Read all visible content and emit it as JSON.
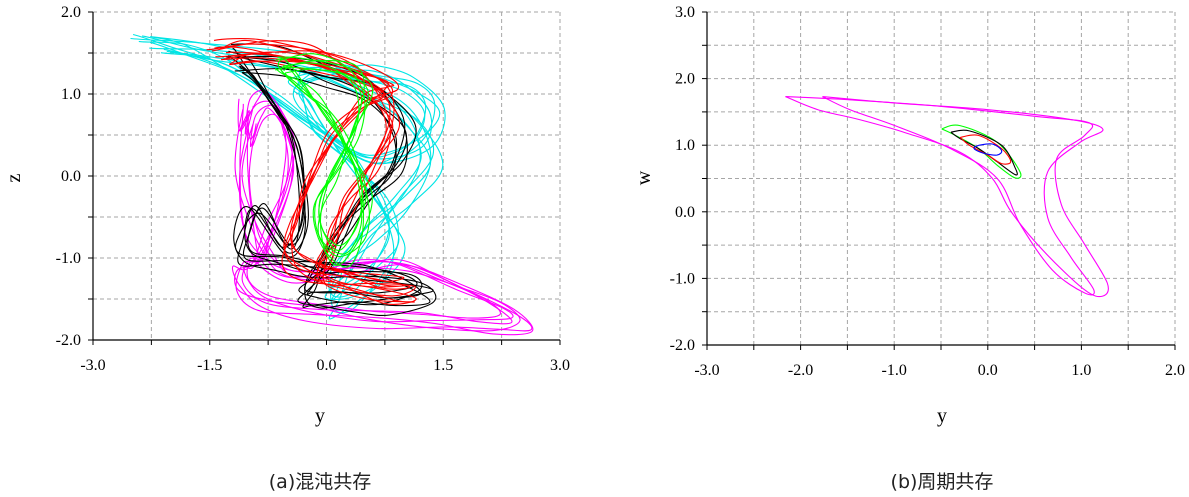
{
  "figures": [
    {
      "caption": "(a)混沌共存"
    },
    {
      "caption": "(b)周期共存"
    }
  ],
  "chart_data": [
    {
      "type": "line",
      "title": "",
      "xlabel": "y",
      "ylabel": "z",
      "xlim": [
        -3.0,
        3.0
      ],
      "ylim": [
        -2.0,
        2.0
      ],
      "xticks": [
        "-3.0",
        "-1.5",
        "0.0",
        "1.5",
        "3.0"
      ],
      "yticks": [
        "2.0",
        "1.0",
        "0.0",
        "-1.0",
        "-2.0"
      ],
      "grid": true,
      "series": [
        {
          "color": "#00e5e5",
          "kind": "chaotic",
          "x": [
            -2.3,
            -1.5,
            -0.3,
            0.5,
            1.1,
            1.35,
            1.0,
            0.6,
            0.3,
            0.1,
            0.05,
            0.3,
            0.7,
            0.9,
            0.7,
            0.3,
            -0.1,
            -0.3,
            -0.4,
            -0.2,
            0.2,
            0.6,
            1.1,
            1.4,
            1.2,
            0.6,
            0.0,
            -0.6,
            -1.2,
            -1.8,
            -2.3
          ],
          "y": [
            1.65,
            1.55,
            1.35,
            1.05,
            0.7,
            0.2,
            -0.3,
            -0.7,
            -1.05,
            -1.35,
            -1.55,
            -1.5,
            -1.2,
            -0.8,
            -0.3,
            0.2,
            0.6,
            0.9,
            1.1,
            1.25,
            1.3,
            1.25,
            1.1,
            0.8,
            0.4,
            0.2,
            0.5,
            0.9,
            1.3,
            1.55,
            1.65
          ]
        },
        {
          "color": "#ff00ff",
          "kind": "chaotic",
          "x": [
            -1.0,
            -1.1,
            -1.0,
            -0.8,
            -0.5,
            -0.1,
            0.4,
            1.0,
            1.7,
            2.3,
            2.5,
            2.1,
            1.4,
            0.6,
            -0.2,
            -0.8,
            -1.1,
            -1.1,
            -0.9,
            -0.7,
            -0.5,
            -0.5,
            -0.7,
            -0.9,
            -1.05,
            -1.0
          ],
          "y": [
            0.8,
            0.1,
            -0.6,
            -1.0,
            -1.2,
            -1.2,
            -1.1,
            -1.1,
            -1.35,
            -1.6,
            -1.8,
            -1.85,
            -1.8,
            -1.75,
            -1.65,
            -1.55,
            -1.35,
            -1.1,
            -1.05,
            -0.6,
            0.0,
            0.5,
            0.9,
            0.85,
            0.5,
            0.8
          ]
        },
        {
          "color": "#000000",
          "kind": "chaotic",
          "x": [
            -1.2,
            -0.6,
            0.0,
            0.6,
            1.0,
            0.9,
            0.5,
            0.2,
            0.0,
            -0.2,
            -0.3,
            -0.1,
            0.3,
            0.8,
            1.3,
            1.1,
            0.5,
            -0.1,
            -0.6,
            -1.05,
            -1.1,
            -0.9,
            -0.5,
            -0.3,
            -0.4,
            -0.7,
            -1.0,
            -1.2
          ],
          "y": [
            1.45,
            1.4,
            1.25,
            1.05,
            0.6,
            0.1,
            -0.3,
            -0.7,
            -1.0,
            -1.3,
            -1.5,
            -1.55,
            -1.55,
            -1.55,
            -1.45,
            -1.3,
            -1.2,
            -1.15,
            -1.05,
            -1.0,
            -0.75,
            -0.4,
            -0.9,
            -0.5,
            0.4,
            0.9,
            1.3,
            1.45
          ]
        },
        {
          "color": "#ff0000",
          "kind": "chaotic",
          "x": [
            -1.4,
            -0.8,
            -0.2,
            0.3,
            0.7,
            0.85,
            0.6,
            0.3,
            0.1,
            0.0,
            -0.1,
            0.1,
            0.6,
            1.1,
            0.8,
            0.2,
            -0.3,
            -0.5,
            -0.4,
            -0.2,
            0.1,
            0.5,
            0.8,
            0.75,
            0.3,
            -0.4,
            -1.0,
            -1.4
          ],
          "y": [
            1.5,
            1.55,
            1.5,
            1.3,
            1.0,
            0.6,
            0.1,
            -0.3,
            -0.7,
            -1.0,
            -1.2,
            -1.3,
            -1.35,
            -1.4,
            -1.45,
            -1.3,
            -1.15,
            -0.9,
            -0.5,
            0.0,
            0.5,
            0.9,
            1.05,
            1.15,
            1.3,
            1.45,
            1.55,
            1.5
          ]
        },
        {
          "color": "#00ff00",
          "kind": "chaotic",
          "x": [
            -0.6,
            -0.2,
            0.3,
            0.5,
            0.35,
            0.1,
            -0.1,
            -0.05,
            0.2,
            0.45,
            0.5,
            0.3,
            0.0,
            -0.3,
            -0.55,
            -0.6
          ],
          "y": [
            1.35,
            1.4,
            1.3,
            1.0,
            0.5,
            0.0,
            -0.4,
            -0.8,
            -1.0,
            -0.7,
            -0.2,
            0.3,
            0.8,
            1.1,
            1.3,
            1.35
          ]
        }
      ]
    },
    {
      "type": "line",
      "title": "",
      "xlabel": "y",
      "ylabel": "w",
      "xlim": [
        -3.0,
        2.0
      ],
      "ylim": [
        -2.0,
        3.0
      ],
      "xticks": [
        "-3.0",
        "-2.0",
        "-1.0",
        "0.0",
        "1.0",
        "2.0"
      ],
      "yticks": [
        "3.0",
        "2.0",
        "1.0",
        "0.0",
        "-1.0",
        "-2.0"
      ],
      "grid": true,
      "series": [
        {
          "color": "#ff00ff",
          "kind": "periodic",
          "x": [
            -2.2,
            -1.5,
            -0.5,
            0.5,
            1.1,
            1.05,
            0.75,
            0.8,
            1.05,
            1.3,
            1.25,
            1.05,
            0.6,
            0.25,
            0.05,
            -0.3,
            -0.9,
            -1.4,
            -1.85,
            -2.2
          ],
          "y": [
            1.75,
            1.7,
            1.6,
            1.45,
            1.35,
            1.15,
            0.8,
            0.1,
            -0.5,
            -1.1,
            -1.3,
            -1.2,
            -0.6,
            0.0,
            0.5,
            0.9,
            1.2,
            1.4,
            1.55,
            1.75
          ]
        },
        {
          "color": "#ff00ff",
          "kind": "periodic",
          "x": [
            -1.8,
            -1.0,
            0.0,
            0.9,
            1.25,
            1.0,
            0.65,
            0.65,
            0.9,
            1.15,
            1.05,
            0.7,
            0.35,
            0.1,
            -0.4,
            -1.0,
            -1.5,
            -1.8
          ],
          "y": [
            1.75,
            1.65,
            1.55,
            1.4,
            1.25,
            1.05,
            0.6,
            -0.1,
            -0.7,
            -1.2,
            -1.25,
            -0.9,
            -0.2,
            0.5,
            0.95,
            1.3,
            1.55,
            1.75
          ]
        },
        {
          "color": "#00ff00",
          "kind": "periodic",
          "x": [
            -0.5,
            -0.3,
            0.1,
            0.35,
            0.3,
            0.1,
            -0.1,
            -0.35,
            -0.5
          ],
          "y": [
            1.25,
            1.3,
            1.05,
            0.6,
            0.5,
            0.7,
            0.95,
            1.15,
            1.25
          ]
        },
        {
          "color": "#000000",
          "kind": "periodic",
          "x": [
            -0.4,
            -0.2,
            0.15,
            0.3,
            0.3,
            0.1,
            -0.1,
            -0.3,
            -0.4
          ],
          "y": [
            1.2,
            1.22,
            1.0,
            0.65,
            0.55,
            0.75,
            0.95,
            1.1,
            1.2
          ]
        },
        {
          "color": "#ff0000",
          "kind": "periodic",
          "x": [
            -0.3,
            -0.1,
            0.15,
            0.25,
            0.15,
            0.0,
            -0.2,
            -0.3
          ],
          "y": [
            1.12,
            1.15,
            0.95,
            0.75,
            0.72,
            0.85,
            1.0,
            1.12
          ]
        },
        {
          "color": "#0000ff",
          "kind": "periodic",
          "x": [
            -0.1,
            0.05,
            0.15,
            0.1,
            -0.05,
            -0.15,
            -0.1
          ],
          "y": [
            1.0,
            1.02,
            0.92,
            0.85,
            0.88,
            0.95,
            1.0
          ]
        }
      ]
    }
  ]
}
